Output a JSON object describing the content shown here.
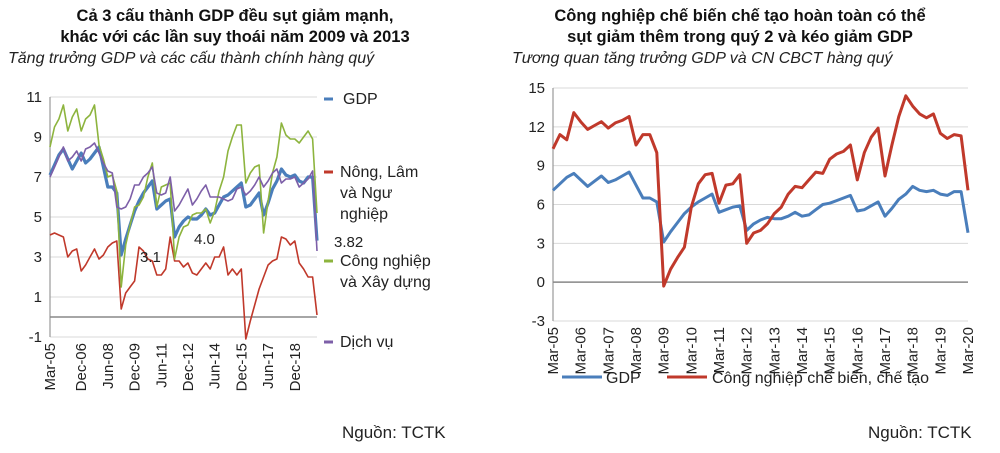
{
  "chart_data": [
    {
      "type": "line",
      "title": "Cả 3 cấu thành GDP đều sụt giảm mạnh, khác với các lần suy thoái năm 2009 và 2013",
      "title_lines": [
        "Cả 3 cấu thành GDP đều sụt giảm mạnh,",
        "khác với các lần suy thoái năm 2009 và 2013"
      ],
      "subtitle": "Tăng trưởng GDP và các cấu thành chính hàng quý",
      "source": "Nguồn: TCTK",
      "x_start": "Mar-05",
      "x_end": "Mar-20",
      "x_frequency": "quarterly",
      "x_tick_labels": [
        "Mar-05",
        "Dec-06",
        "Jun-08",
        "Dec-09",
        "Jun-11",
        "Dec-12",
        "Jun-14",
        "Dec-15",
        "Jun-17",
        "Dec-18"
      ],
      "x_tick_index": [
        0,
        7,
        13,
        19,
        25,
        31,
        37,
        43,
        49,
        55
      ],
      "ylim": [
        -1,
        11
      ],
      "y_ticks": [
        -1,
        1,
        3,
        5,
        7,
        9,
        11
      ],
      "grid": true,
      "legend_position": "right",
      "annotations": [
        "3.1",
        "4.0",
        "3.82"
      ],
      "series": [
        {
          "name": "GDP",
          "legend_lines": [
            "GDP"
          ],
          "color": "#4a7ebb",
          "width": 3.2,
          "values": [
            7.1,
            7.6,
            8.1,
            8.4,
            7.9,
            7.4,
            7.8,
            8.2,
            7.7,
            7.9,
            8.2,
            8.5,
            7.5,
            6.5,
            6.5,
            6.2,
            3.1,
            3.9,
            4.6,
            5.3,
            5.8,
            6.2,
            6.5,
            6.8,
            5.4,
            5.6,
            5.8,
            5.9,
            4.0,
            4.5,
            4.8,
            5.0,
            4.9,
            4.9,
            5.1,
            5.4,
            5.1,
            5.2,
            5.6,
            6.0,
            6.1,
            6.3,
            6.5,
            6.7,
            5.5,
            5.6,
            5.9,
            6.2,
            5.1,
            5.7,
            6.4,
            6.8,
            7.4,
            7.1,
            7.0,
            7.1,
            6.8,
            6.7,
            7.0,
            7.0,
            3.82
          ]
        },
        {
          "name": "Nông, Lâm và Ngư nghiệp",
          "legend_lines": [
            "Nông, Lâm",
            "và Ngư",
            "nghiệp"
          ],
          "color": "#c0392b",
          "width": 1.6,
          "values": [
            4.1,
            4.2,
            4.1,
            4.0,
            3.0,
            3.3,
            3.4,
            2.3,
            2.6,
            3.0,
            3.4,
            2.9,
            3.1,
            3.5,
            3.7,
            3.8,
            0.4,
            1.2,
            1.5,
            1.8,
            3.5,
            3.3,
            2.9,
            2.8,
            2.1,
            2.1,
            2.4,
            4.0,
            2.8,
            2.8,
            2.5,
            2.7,
            2.2,
            2.1,
            2.4,
            2.7,
            2.4,
            3.0,
            3.0,
            3.5,
            2.1,
            2.4,
            2.1,
            2.4,
            -1.1,
            -0.2,
            0.6,
            1.4,
            2.0,
            2.6,
            2.8,
            2.9,
            4.0,
            3.9,
            3.6,
            3.8,
            2.7,
            2.4,
            2.0,
            2.0,
            0.1
          ]
        },
        {
          "name": "Công nghiệp và Xây dựng",
          "legend_lines": [
            "Công nghiệp",
            "và Xây dựng"
          ],
          "color": "#8db43e",
          "width": 1.6,
          "values": [
            8.5,
            9.5,
            9.9,
            10.6,
            9.3,
            10.0,
            10.4,
            9.3,
            9.9,
            10.1,
            10.6,
            8.6,
            7.9,
            7.0,
            7.1,
            6.3,
            1.5,
            3.6,
            4.6,
            5.5,
            5.6,
            6.0,
            7.0,
            7.7,
            5.5,
            6.5,
            6.6,
            6.7,
            2.9,
            4.0,
            4.5,
            4.6,
            5.1,
            5.2,
            5.2,
            5.4,
            4.7,
            5.3,
            6.3,
            7.0,
            8.3,
            9.0,
            9.6,
            9.6,
            6.7,
            7.2,
            7.5,
            7.6,
            4.2,
            5.8,
            7.2,
            8.0,
            9.7,
            9.1,
            8.9,
            8.9,
            8.7,
            9.0,
            9.3,
            8.9,
            5.2
          ]
        },
        {
          "name": "Dịch vụ",
          "legend_lines": [
            "Dịch vụ"
          ],
          "color": "#7d5fa8",
          "width": 1.6,
          "values": [
            7.0,
            7.5,
            8.0,
            8.5,
            7.8,
            8.0,
            8.3,
            7.8,
            8.4,
            8.5,
            8.7,
            8.2,
            7.7,
            7.3,
            7.2,
            5.5,
            5.4,
            5.5,
            5.9,
            6.6,
            6.6,
            7.0,
            7.2,
            7.5,
            6.2,
            6.1,
            6.2,
            7.0,
            5.3,
            5.6,
            6.0,
            6.4,
            5.6,
            5.9,
            6.3,
            6.6,
            6.0,
            6.0,
            6.0,
            5.9,
            5.8,
            5.9,
            6.4,
            6.5,
            6.1,
            6.3,
            6.6,
            7.0,
            6.5,
            6.8,
            7.2,
            7.4,
            6.7,
            6.9,
            6.9,
            7.0,
            6.5,
            6.7,
            6.9,
            7.3,
            3.3
          ]
        }
      ]
    },
    {
      "type": "line",
      "title": "Công nghiệp chế biến chế tạo hoàn toàn có thể sụt giảm thêm trong quý 2 và kéo giảm GDP",
      "title_lines": [
        "Công nghiệp chế biến chế tạo hoàn toàn có thể",
        "sụt giảm thêm trong quý 2 và kéo giảm GDP"
      ],
      "subtitle": "Tương quan tăng trưởng GDP và CN CBCT hàng quý",
      "source": "Nguồn: TCTK",
      "x_start": "Mar-05",
      "x_end": "Mar-20",
      "x_frequency": "quarterly",
      "x_tick_labels": [
        "Mar-05",
        "Mar-06",
        "Mar-07",
        "Mar-08",
        "Mar-09",
        "Mar-10",
        "Mar-11",
        "Mar-12",
        "Mar-13",
        "Mar-14",
        "Mar-15",
        "Mar-16",
        "Mar-17",
        "Mar-18",
        "Mar-19",
        "Mar-20"
      ],
      "x_tick_index": [
        0,
        4,
        8,
        12,
        16,
        20,
        24,
        28,
        32,
        36,
        40,
        44,
        48,
        52,
        56,
        60
      ],
      "ylim": [
        -3,
        15
      ],
      "y_ticks": [
        -3,
        0,
        3,
        6,
        9,
        12,
        15
      ],
      "grid": true,
      "legend_position": "bottom",
      "series": [
        {
          "name": "GDP",
          "color": "#4a7ebb",
          "width": 3,
          "values": [
            7.1,
            7.6,
            8.1,
            8.4,
            7.9,
            7.4,
            7.8,
            8.2,
            7.7,
            7.9,
            8.2,
            8.5,
            7.5,
            6.5,
            6.5,
            6.2,
            3.1,
            3.9,
            4.6,
            5.3,
            5.8,
            6.2,
            6.5,
            6.8,
            5.4,
            5.6,
            5.8,
            5.9,
            4.0,
            4.5,
            4.8,
            5.0,
            4.9,
            4.9,
            5.1,
            5.4,
            5.1,
            5.2,
            5.6,
            6.0,
            6.1,
            6.3,
            6.5,
            6.7,
            5.5,
            5.6,
            5.9,
            6.2,
            5.1,
            5.7,
            6.4,
            6.8,
            7.4,
            7.1,
            7.0,
            7.1,
            6.8,
            6.7,
            7.0,
            7.0,
            3.82
          ]
        },
        {
          "name": "Công nghiệp chế biến, chế tạo",
          "color": "#c0392b",
          "width": 3,
          "values": [
            10.3,
            11.4,
            11.0,
            13.1,
            12.4,
            11.8,
            12.1,
            12.4,
            11.9,
            12.3,
            12.5,
            12.8,
            10.6,
            11.4,
            11.4,
            10.0,
            -0.3,
            1.0,
            1.9,
            2.7,
            5.8,
            7.6,
            8.3,
            8.4,
            6.1,
            7.5,
            7.6,
            8.3,
            3.0,
            3.8,
            4.0,
            4.5,
            5.3,
            5.8,
            6.8,
            7.4,
            7.3,
            7.9,
            8.5,
            8.4,
            9.5,
            9.9,
            10.1,
            10.6,
            7.9,
            10.0,
            11.2,
            11.9,
            8.2,
            10.6,
            12.8,
            14.4,
            13.6,
            13.0,
            12.7,
            13.0,
            11.5,
            11.1,
            11.4,
            11.3,
            7.1
          ]
        }
      ]
    }
  ]
}
